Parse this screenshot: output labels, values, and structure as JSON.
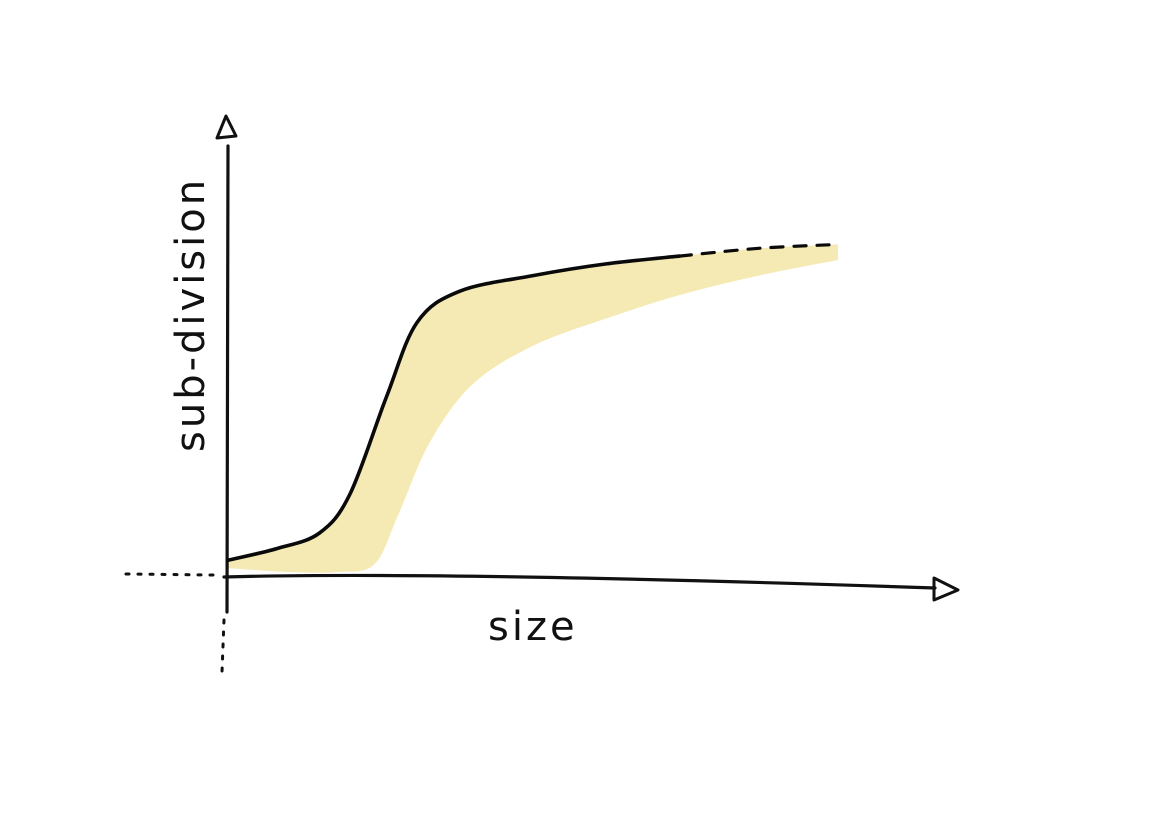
{
  "chart_data": {
    "type": "line",
    "style": "hand-drawn sketch",
    "xlabel": "size",
    "ylabel": "sub-division",
    "x_ticks": [],
    "y_ticks": [],
    "grid": false,
    "legend": "none",
    "series": [
      {
        "kind": "sigmoid-curve",
        "x": [
          0,
          0.08,
          0.15,
          0.2,
          0.26,
          0.31,
          0.38,
          0.5,
          0.62,
          0.74,
          0.87,
          1.0
        ],
        "y": [
          0.03,
          0.06,
          0.1,
          0.2,
          0.45,
          0.64,
          0.72,
          0.76,
          0.79,
          0.81,
          0.83,
          0.84
        ],
        "dashed_after_x": 0.78
      }
    ],
    "shaded_region": {
      "upper_edge": "curve",
      "lower_edge_x": [
        0,
        0.1,
        0.18,
        0.24,
        0.28,
        0.33,
        0.4,
        0.5,
        0.62,
        0.74,
        0.87,
        1.0
      ],
      "lower_edge_y": [
        0.01,
        0.0,
        0.0,
        0.02,
        0.15,
        0.33,
        0.48,
        0.58,
        0.65,
        0.71,
        0.76,
        0.8
      ]
    },
    "colors": {
      "ink": "#111111",
      "wash": "#f3e6a6"
    }
  }
}
